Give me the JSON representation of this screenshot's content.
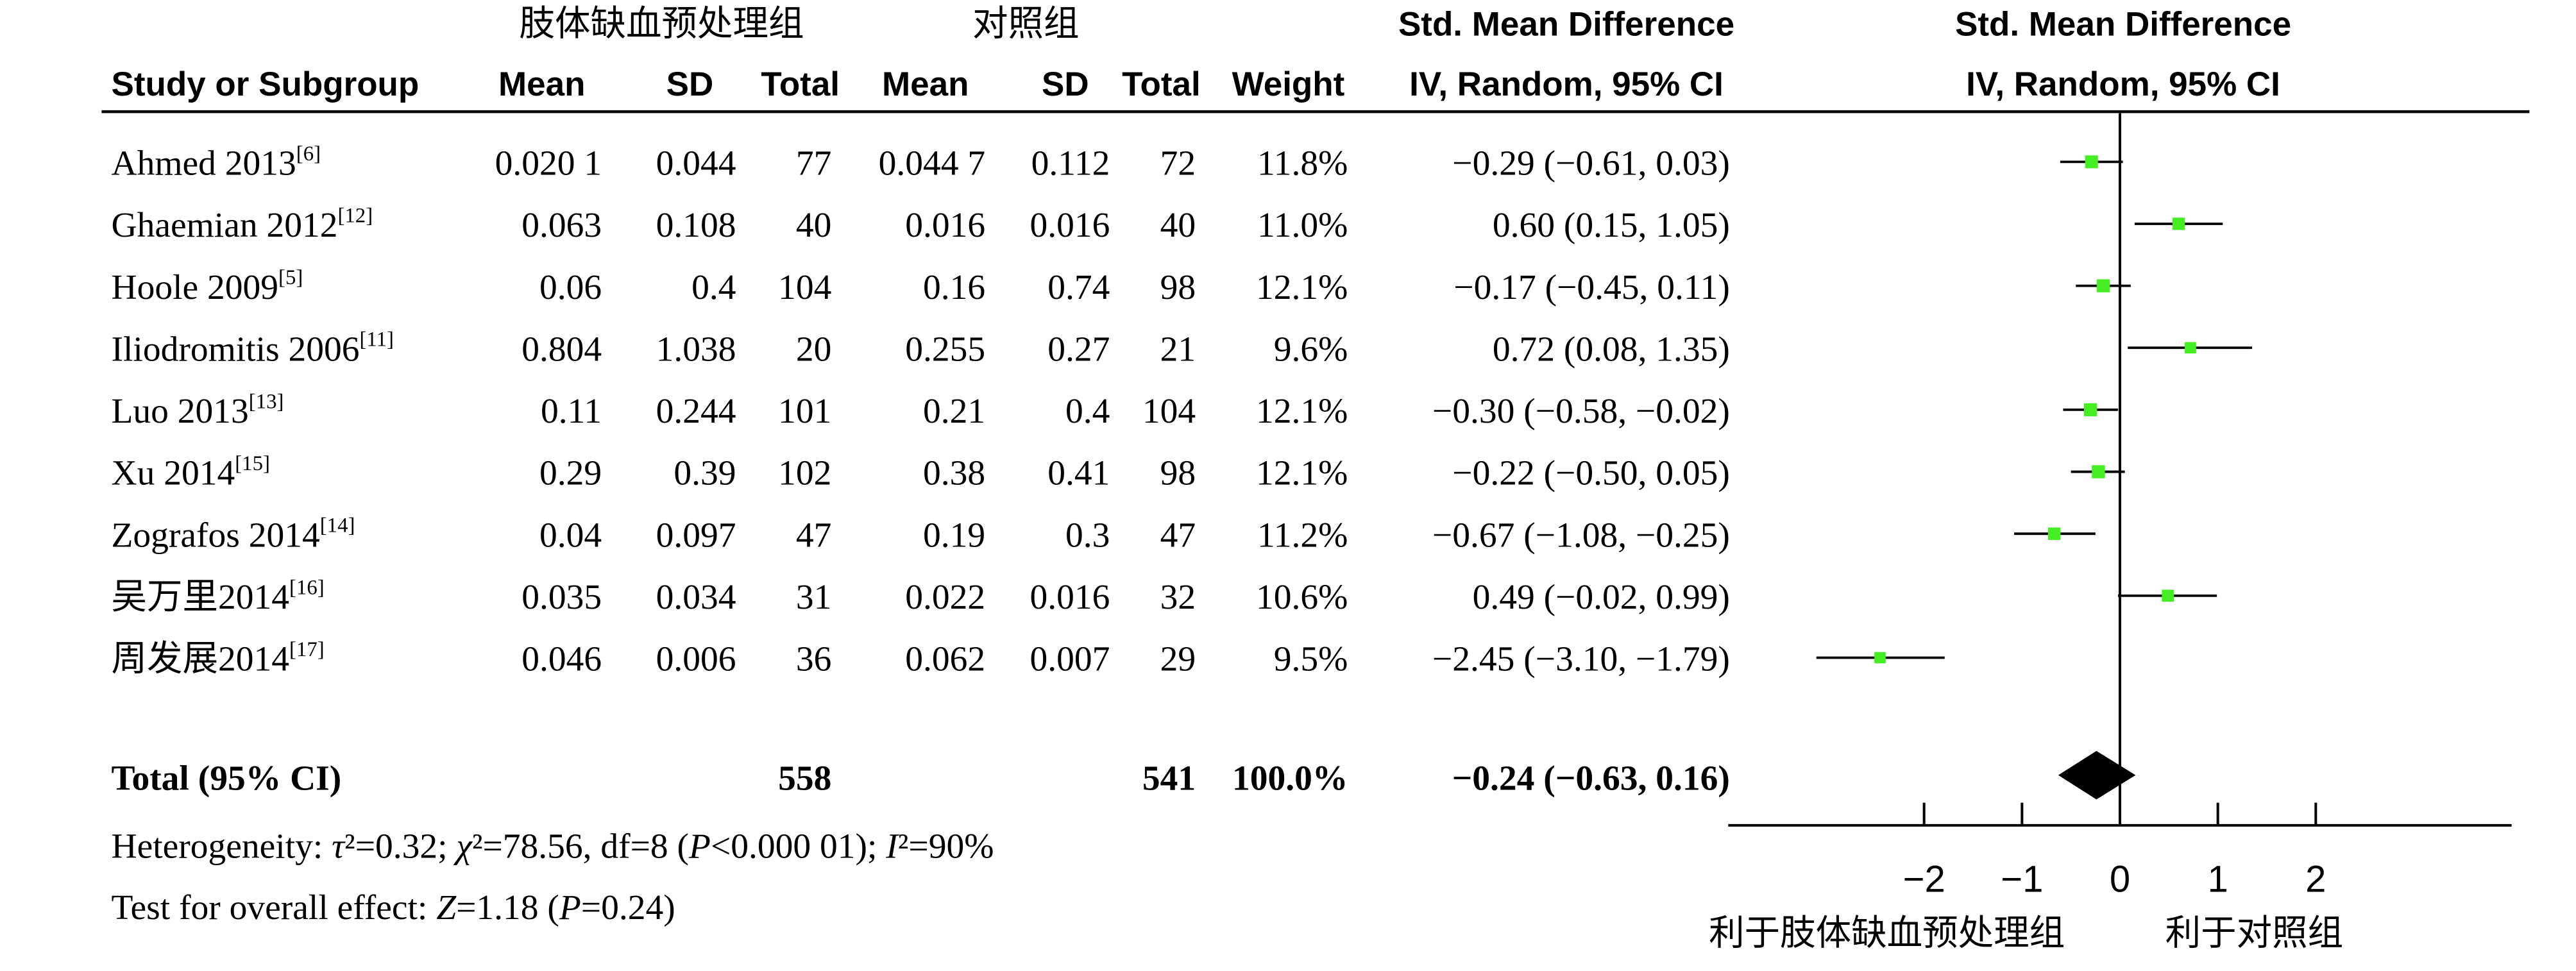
{
  "header": {
    "group_exp": "肢体缺血预处理组",
    "group_ctrl": "对照组",
    "effect_title": "Std. Mean Difference",
    "effect_method": "IV, Random, 95% CI",
    "plot_title": "Std. Mean Difference",
    "plot_method": "IV, Random, 95% CI",
    "columns": [
      "Study or Subgroup",
      "Mean",
      "SD",
      "Total",
      "Mean",
      "SD",
      "Total",
      "Weight"
    ]
  },
  "studies": [
    {
      "name": "Ahmed 2013",
      "ref": "[6]",
      "exp_mean": "0.020 1",
      "exp_sd": "0.044",
      "exp_total": "77",
      "ctrl_mean": "0.044 7",
      "ctrl_sd": "0.112",
      "ctrl_total": "72",
      "weight": "11.8%",
      "ci_text": "−0.29 (−0.61, 0.03)"
    },
    {
      "name": "Ghaemian 2012",
      "ref": "[12]",
      "exp_mean": "0.063",
      "exp_sd": "0.108",
      "exp_total": "40",
      "ctrl_mean": "0.016",
      "ctrl_sd": "0.016",
      "ctrl_total": "40",
      "weight": "11.0%",
      "ci_text": "0.60 (0.15, 1.05)"
    },
    {
      "name": "Hoole 2009",
      "ref": "[5]",
      "exp_mean": "0.06",
      "exp_sd": "0.4",
      "exp_total": "104",
      "ctrl_mean": "0.16",
      "ctrl_sd": "0.74",
      "ctrl_total": "98",
      "weight": "12.1%",
      "ci_text": "−0.17 (−0.45, 0.11)"
    },
    {
      "name": "Iliodromitis 2006",
      "ref": "[11]",
      "exp_mean": "0.804",
      "exp_sd": "1.038",
      "exp_total": "20",
      "ctrl_mean": "0.255",
      "ctrl_sd": "0.27",
      "ctrl_total": "21",
      "weight": "9.6%",
      "ci_text": "0.72 (0.08, 1.35)"
    },
    {
      "name": "Luo 2013",
      "ref": "[13]",
      "exp_mean": "0.11",
      "exp_sd": "0.244",
      "exp_total": "101",
      "ctrl_mean": "0.21",
      "ctrl_sd": "0.4",
      "ctrl_total": "104",
      "weight": "12.1%",
      "ci_text": "−0.30 (−0.58, −0.02)"
    },
    {
      "name": "Xu 2014",
      "ref": "[15]",
      "exp_mean": "0.29",
      "exp_sd": "0.39",
      "exp_total": "102",
      "ctrl_mean": "0.38",
      "ctrl_sd": "0.41",
      "ctrl_total": "98",
      "weight": "12.1%",
      "ci_text": "−0.22 (−0.50, 0.05)"
    },
    {
      "name": "Zografos 2014",
      "ref": "[14]",
      "exp_mean": "0.04",
      "exp_sd": "0.097",
      "exp_total": "47",
      "ctrl_mean": "0.19",
      "ctrl_sd": "0.3",
      "ctrl_total": "47",
      "weight": "11.2%",
      "ci_text": "−0.67 (−1.08, −0.25)"
    },
    {
      "name": "吴万里2014",
      "ref": "[16]",
      "exp_mean": "0.035",
      "exp_sd": "0.034",
      "exp_total": "31",
      "ctrl_mean": "0.022",
      "ctrl_sd": "0.016",
      "ctrl_total": "32",
      "weight": "10.6%",
      "ci_text": "0.49 (−0.02, 0.99)"
    },
    {
      "name": "周发展2014",
      "ref": "[17]",
      "exp_mean": "0.046",
      "exp_sd": "0.006",
      "exp_total": "36",
      "ctrl_mean": "0.062",
      "ctrl_sd": "0.007",
      "ctrl_total": "29",
      "weight": "9.5%",
      "ci_text": "−2.45 (−3.10, −1.79)"
    }
  ],
  "total": {
    "label": "Total (95% CI)",
    "exp_total": "558",
    "ctrl_total": "541",
    "weight": "100.0%",
    "ci_text": "−0.24 (−0.63, 0.16)"
  },
  "footnotes": {
    "heterogeneity": "Heterogeneity: τ²=0.32; χ²=78.56, df=8 (P<0.000 01); I²=90%",
    "overall": "Test for overall effect: Z=1.18 (P=0.24)"
  },
  "chart_data": {
    "type": "forest",
    "x_ticks": [
      "−2",
      "−1",
      "0",
      "1",
      "2"
    ],
    "favours_left": "利于肢体缺血预处理组",
    "favours_right": "利于对照组",
    "colors": {
      "study_marker": "#44ee22",
      "summary": "#000000",
      "lines": "#000000"
    },
    "studies": [
      {
        "name": "Ahmed 2013",
        "smd": -0.29,
        "lo": -0.61,
        "hi": 0.03,
        "weight": 11.8
      },
      {
        "name": "Ghaemian 2012",
        "smd": 0.6,
        "lo": 0.15,
        "hi": 1.05,
        "weight": 11.0
      },
      {
        "name": "Hoole 2009",
        "smd": -0.17,
        "lo": -0.45,
        "hi": 0.11,
        "weight": 12.1
      },
      {
        "name": "Iliodromitis 2006",
        "smd": 0.72,
        "lo": 0.08,
        "hi": 1.35,
        "weight": 9.6
      },
      {
        "name": "Luo 2013",
        "smd": -0.3,
        "lo": -0.58,
        "hi": -0.02,
        "weight": 12.1
      },
      {
        "name": "Xu 2014",
        "smd": -0.22,
        "lo": -0.5,
        "hi": 0.05,
        "weight": 12.1
      },
      {
        "name": "Zografos 2014",
        "smd": -0.67,
        "lo": -1.08,
        "hi": -0.25,
        "weight": 11.2
      },
      {
        "name": "吴万里2014",
        "smd": 0.49,
        "lo": -0.02,
        "hi": 0.99,
        "weight": 10.6
      },
      {
        "name": "周发展2014",
        "smd": -2.45,
        "lo": -3.1,
        "hi": -1.79,
        "weight": 9.5
      }
    ],
    "summary": {
      "smd": -0.24,
      "lo": -0.63,
      "hi": 0.16
    },
    "xlim": [
      -4,
      4
    ]
  }
}
